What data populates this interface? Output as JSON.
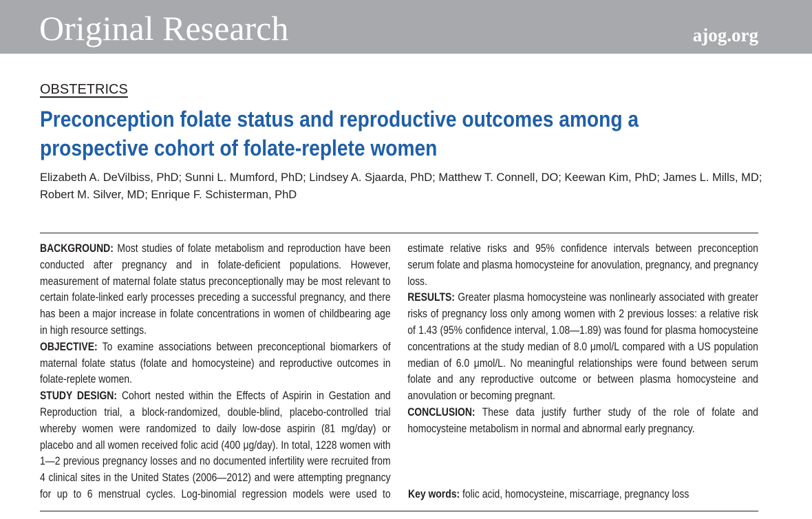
{
  "header": {
    "section": "Original Research",
    "site": "ajog.org"
  },
  "article": {
    "category": "OBSTETRICS",
    "title": "Preconception folate status and reproductive outcomes among a prospective cohort of folate-replete women",
    "authors": "Elizabeth A. DeVilbiss, PhD; Sunni L. Mumford, PhD; Lindsey A. Sjaarda, PhD; Matthew T. Connell, DO; Keewan Kim, PhD; James L. Mills, MD; Robert M. Silver, MD; Enrique F. Schisterman, PhD"
  },
  "abstract": {
    "sections": [
      {
        "label": "BACKGROUND:",
        "text": "Most studies of folate metabolism and reproduction have been conducted after pregnancy and in folate-deficient populations. However, measurement of maternal folate status preconceptionally may be most relevant to certain folate-linked early processes preceding a successful pregnancy, and there has been a major increase in folate concentrations in women of childbearing age in high resource settings."
      },
      {
        "label": "OBJECTIVE:",
        "text": "To examine associations between preconceptional biomarkers of maternal folate status (folate and homocysteine) and reproductive outcomes in folate-replete women."
      },
      {
        "label": "STUDY DESIGN:",
        "text": "Cohort nested within the Effects of Aspirin in Gestation and Reproduction trial, a block-randomized, double-blind, placebo-controlled trial whereby women were randomized to daily low-dose aspirin (81 mg/day) or placebo and all women received folic acid (400 μg/day). In total, 1228 women with 1—2 previous pregnancy losses and no documented infertility were recruited from 4 clinical sites in the United States (2006—2012) and were attempting pregnancy for up to 6 menstrual cycles. Log-binomial regression models were used to estimate relative risks and 95% confidence intervals between preconception serum folate and plasma homocysteine for anovulation, pregnancy, and pregnancy loss."
      },
      {
        "label": "RESULTS:",
        "text": "Greater plasma homocysteine was nonlinearly associated with greater risks of pregnancy loss only among women with 2 previous losses: a relative risk of 1.43 (95% confidence interval, 1.08—1.89) was found for plasma homocysteine concentrations at the study median of 8.0 μmol/L compared with a US population median of 6.0 μmol/L. No meaningful relationships were found between serum folate and any reproductive outcome or between plasma homocysteine and anovulation or becoming pregnant."
      },
      {
        "label": "CONCLUSION:",
        "text": "These data justify further study of the role of folate and homocysteine metabolism in normal and abnormal early pregnancy."
      }
    ],
    "keywords": {
      "label": "Key words:",
      "text": "folic acid, homocysteine, miscarriage, pregnancy loss"
    }
  }
}
